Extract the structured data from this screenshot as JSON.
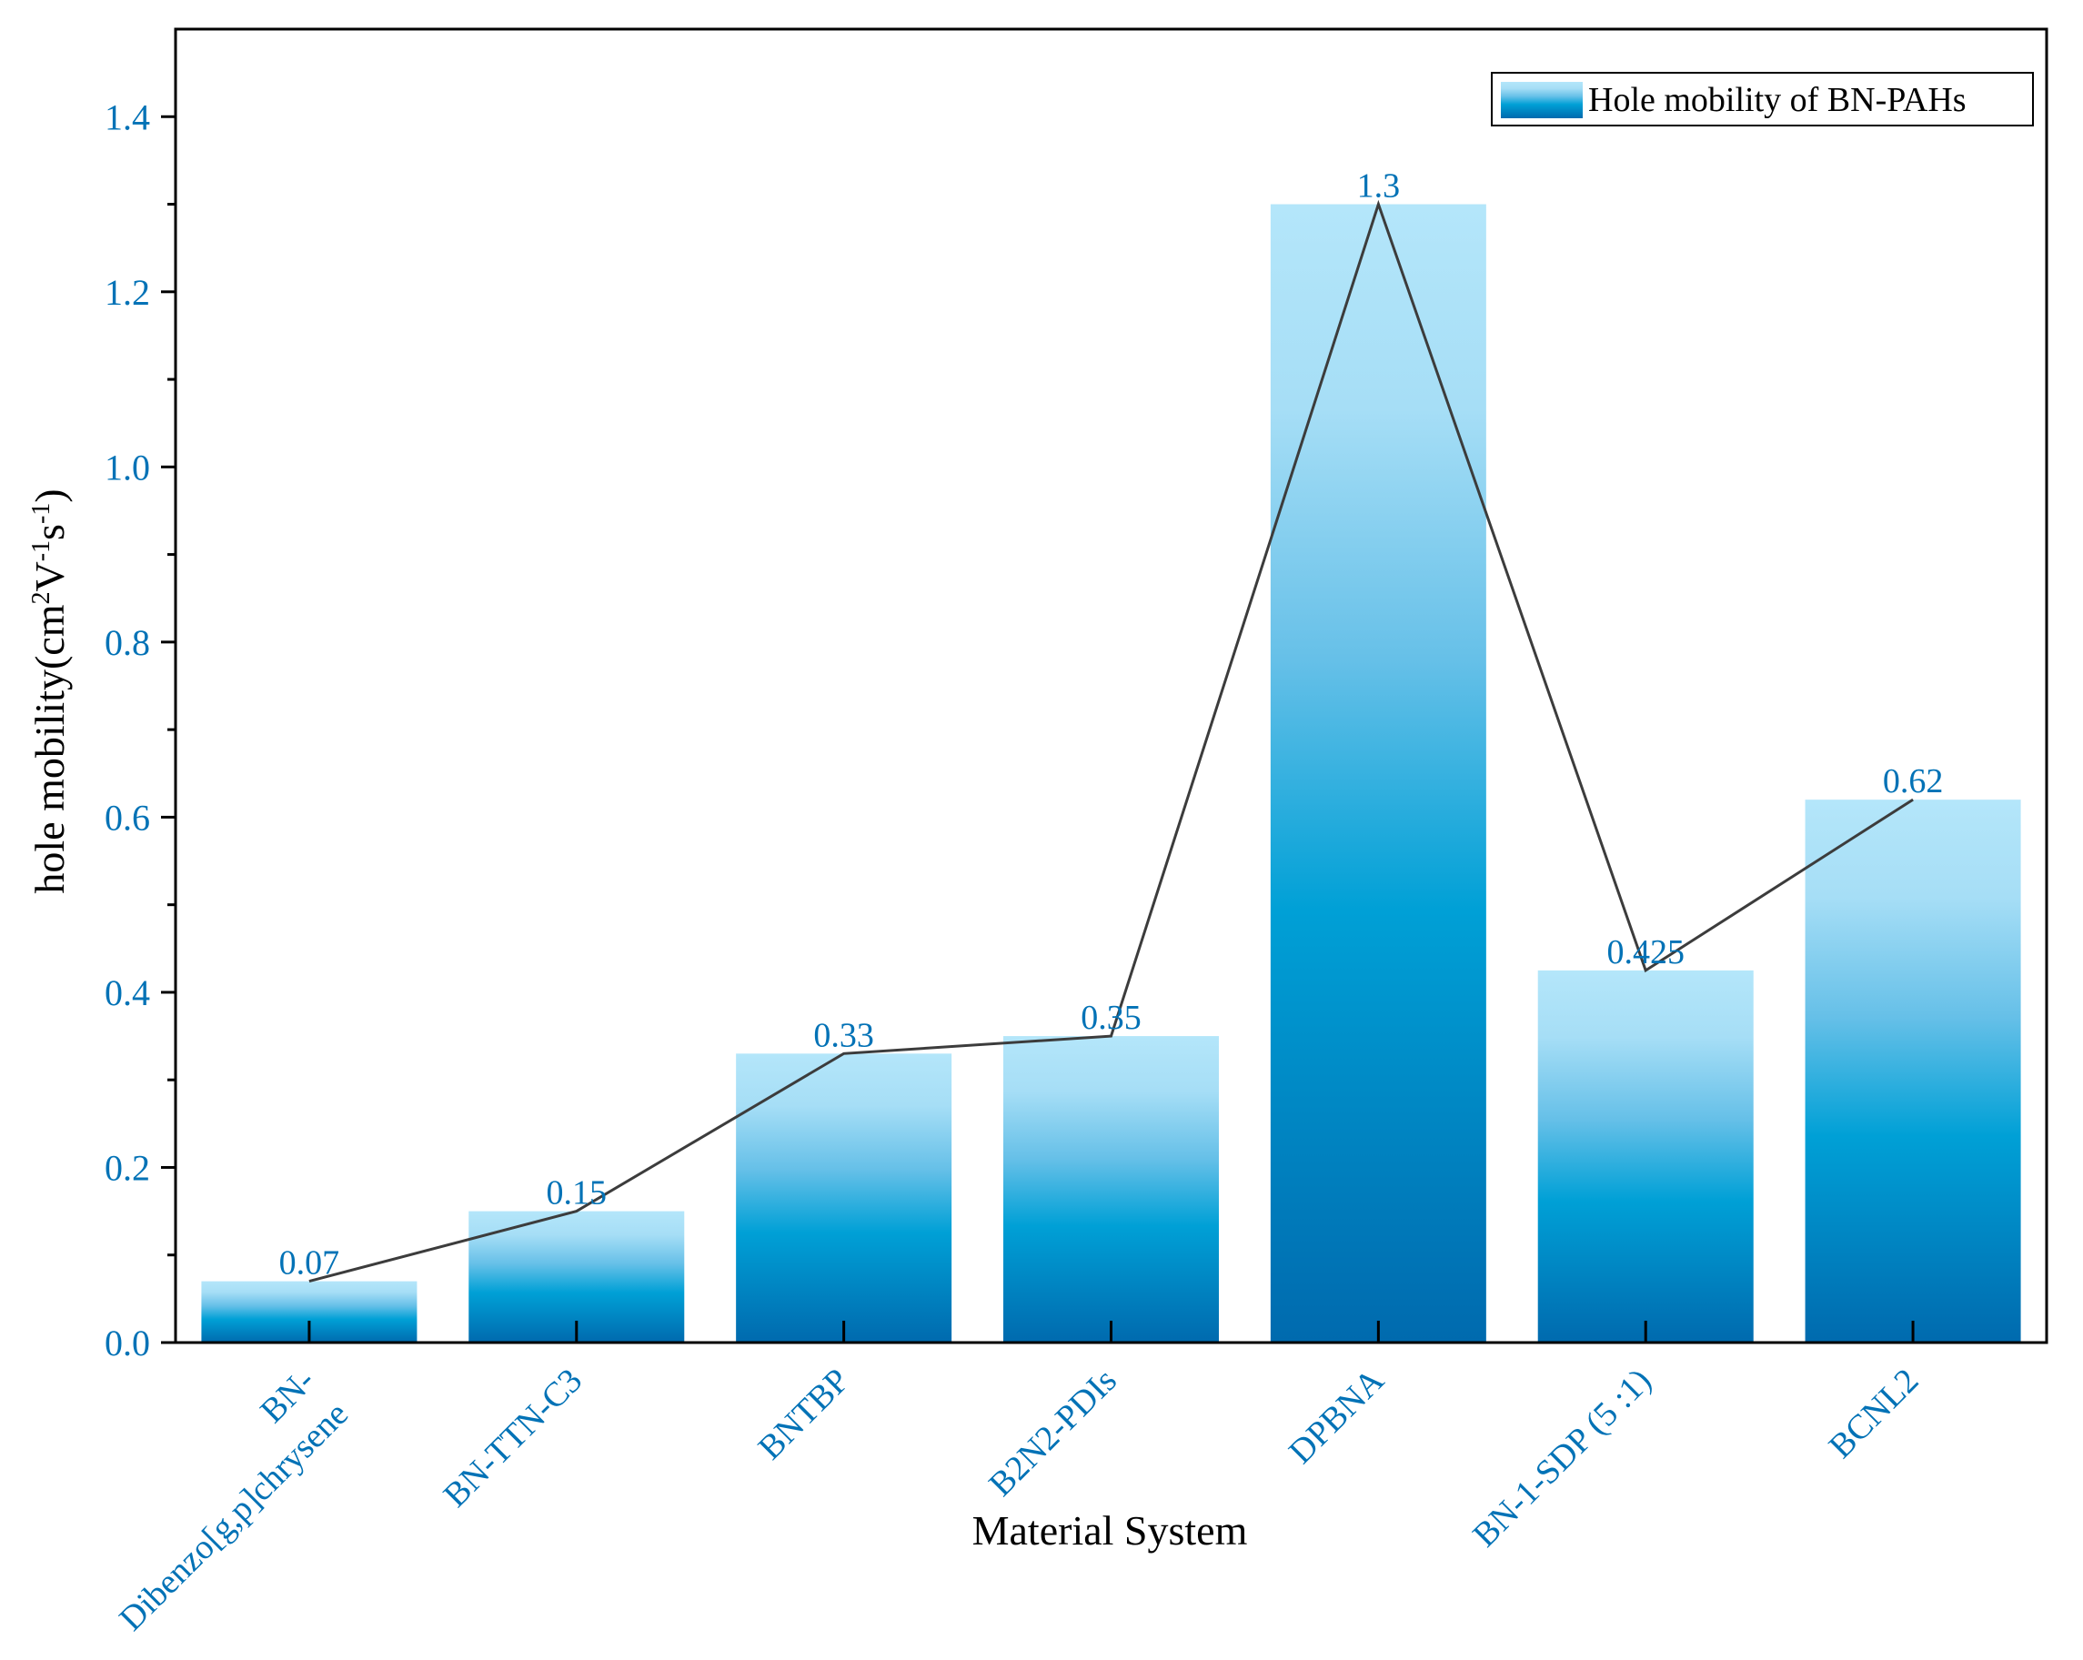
{
  "colors": {
    "accent": "#0272B6",
    "bar_top": "#B4E6FA",
    "bar_mid": "#00A0D6",
    "bar_bottom": "#006AAE",
    "line": "#3C3C3C",
    "axis": "#000000"
  },
  "chart_data": {
    "type": "bar",
    "title": "",
    "xlabel": "Material System",
    "ylabel_main": "hole mobility(cm",
    "ylabel_sup1": "2",
    "ylabel_mid1": "V",
    "ylabel_sup2": "-1",
    "ylabel_mid2": "s",
    "ylabel_sup3": "-1",
    "ylabel_end": ")",
    "ylim": [
      0,
      1.5
    ],
    "yticks": [
      0.0,
      0.2,
      0.4,
      0.6,
      0.8,
      1.0,
      1.2,
      1.4
    ],
    "ytick_labels": [
      "0.0",
      "0.2",
      "0.4",
      "0.6",
      "0.8",
      "1.0",
      "1.2",
      "1.4"
    ],
    "categories": [
      [
        "BN-",
        "Dibenzo[g,p]chrysene"
      ],
      [
        "BN-TTN-C3"
      ],
      [
        "BNTBP"
      ],
      [
        "B2N2-PDIs"
      ],
      [
        "DPBNA"
      ],
      [
        "BN-1-SDP (5 :1)"
      ],
      [
        "BCNL2"
      ]
    ],
    "values": [
      0.07,
      0.15,
      0.33,
      0.35,
      1.3,
      0.425,
      0.62
    ],
    "value_labels": [
      "0.07",
      "0.15",
      "0.33",
      "0.35",
      "1.3",
      "0.425",
      "0.62"
    ],
    "legend": {
      "label": "Hole mobility of BN-PAHs",
      "position": "top-right"
    },
    "overlay": "line connecting bar tops",
    "grid": false
  }
}
